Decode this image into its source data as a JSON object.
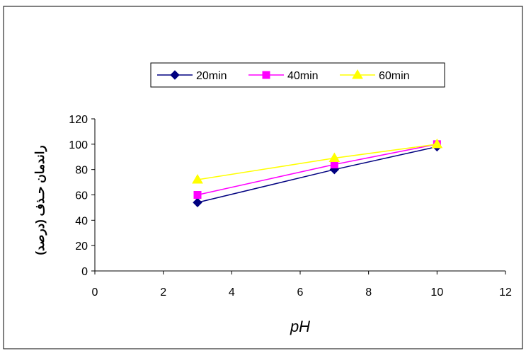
{
  "chart_data": {
    "type": "line",
    "xlabel": "pH",
    "ylabel": "راندمان حـذف (درصد)",
    "xlim": [
      0,
      12
    ],
    "ylim": [
      0,
      120
    ],
    "x_ticks": [
      0,
      2,
      4,
      6,
      8,
      10,
      12
    ],
    "y_ticks": [
      0,
      20,
      40,
      60,
      80,
      100,
      120
    ],
    "grid": false,
    "legend_position": "top-center",
    "series": [
      {
        "name": "20min",
        "color": "#000080",
        "marker": "diamond",
        "x": [
          3,
          7,
          10
        ],
        "y": [
          54,
          80,
          98
        ]
      },
      {
        "name": "40min",
        "color": "#FF00FF",
        "marker": "square",
        "x": [
          3,
          7,
          10
        ],
        "y": [
          60,
          84,
          100
        ]
      },
      {
        "name": "60min",
        "color": "#FFFF00",
        "marker": "triangle",
        "x": [
          3,
          7,
          10
        ],
        "y": [
          72,
          89,
          100
        ]
      }
    ]
  }
}
